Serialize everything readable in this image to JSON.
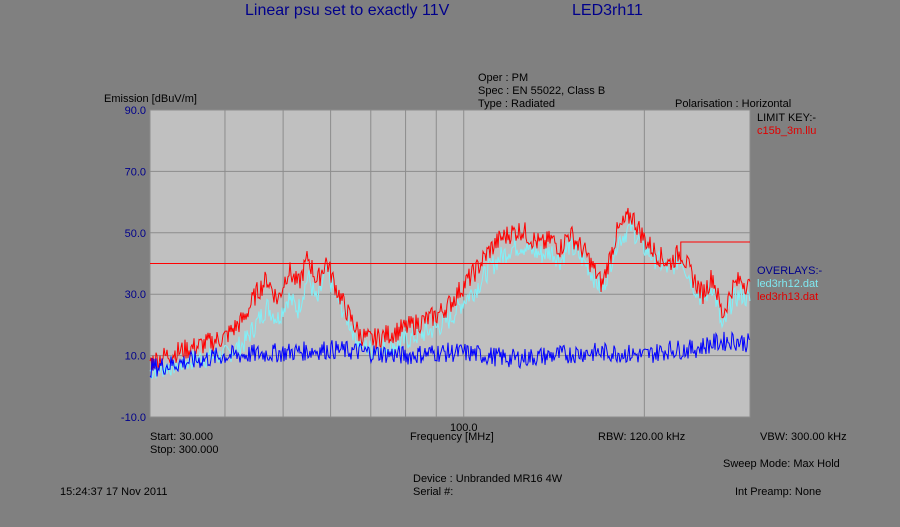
{
  "header": {
    "title": "Linear psu set to exactly 11V",
    "test_id": "LED3rh11",
    "oper": "Oper : PM",
    "spec": "Spec : EN 55022, Class B",
    "type": "Type : Radiated",
    "polarisation": "Polarisation : Horizontal"
  },
  "legend": {
    "limit_key_label": "LIMIT KEY:-",
    "limit_file": "c15b_3m.llu",
    "overlays_label": "OVERLAYS:-",
    "overlay_1": "led3rh12.dat",
    "overlay_2": "led3rh13.dat"
  },
  "footer": {
    "start": "Start: 30.000",
    "stop": "Stop: 300.000",
    "rbw": "RBW: 120.00 kHz",
    "vbw": "VBW: 300.00 kHz",
    "sweep_mode": "Sweep Mode: Max Hold",
    "int_preamp": "Int Preamp: None",
    "timestamp": "15:24:37 17 Nov 2011",
    "device": "Device : Unbranded   MR16 4W",
    "serial": "Serial #:"
  },
  "colors": {
    "plot_bg": "#c0c0c0",
    "grid": "#8c8c8c",
    "limit": "#ff0000",
    "overlay_1": "#80f0f8",
    "overlay_2": "#ff0000",
    "trace": "#0000ff"
  },
  "chart_data": {
    "type": "line",
    "ylabel": "Emission [dBuV/m]",
    "xlabel": "Frequency [MHz]",
    "xscale": "log",
    "xlim": [
      30,
      300
    ],
    "ylim": [
      -10,
      90
    ],
    "yticks": [
      {
        "value": 90,
        "label": "90.0"
      },
      {
        "value": 70,
        "label": "70.0"
      },
      {
        "value": 50,
        "label": "50.0"
      },
      {
        "value": 30,
        "label": "30.0"
      },
      {
        "value": 10,
        "label": "10.0"
      },
      {
        "value": -10,
        "label": "-10.0"
      }
    ],
    "xticks": [
      {
        "value": 100,
        "label": "100.0"
      }
    ],
    "grid": true,
    "series": [
      {
        "name": "c15b_3m.llu",
        "color": "#ff0000",
        "x": [
          30,
          230,
          230,
          300
        ],
        "y": [
          40,
          40,
          47,
          47
        ]
      },
      {
        "name": "led3rh12.dat",
        "color": "#80f0f8",
        "x": [
          30,
          33,
          36,
          40,
          43,
          45,
          47,
          49,
          51,
          53,
          55,
          57,
          59,
          61,
          64,
          67,
          70,
          75,
          80,
          85,
          90,
          95,
          100,
          105,
          110,
          115,
          120,
          125,
          130,
          135,
          140,
          145,
          150,
          160,
          170,
          180,
          190,
          200,
          210,
          220,
          230,
          240,
          250,
          260,
          270,
          280,
          290,
          300
        ],
        "y": [
          5,
          7,
          9,
          10,
          14,
          20,
          26,
          22,
          29,
          25,
          36,
          27,
          38,
          30,
          22,
          14,
          12,
          13,
          15,
          17,
          19,
          22,
          28,
          32,
          38,
          42,
          45,
          46,
          44,
          43,
          44,
          41,
          46,
          40,
          31,
          47,
          52,
          45,
          41,
          38,
          42,
          34,
          28,
          33,
          18,
          28,
          30,
          28
        ]
      },
      {
        "name": "led3rh13.dat",
        "color": "#ff0000",
        "x": [
          30,
          33,
          36,
          40,
          43,
          45,
          47,
          49,
          51,
          53,
          55,
          57,
          59,
          61,
          64,
          67,
          70,
          75,
          80,
          85,
          90,
          95,
          100,
          105,
          110,
          115,
          120,
          125,
          130,
          135,
          140,
          145,
          150,
          160,
          170,
          180,
          190,
          200,
          210,
          220,
          230,
          240,
          250,
          260,
          270,
          280,
          290,
          300
        ],
        "y": [
          8,
          11,
          13,
          16,
          22,
          30,
          35,
          28,
          38,
          33,
          42,
          34,
          41,
          33,
          24,
          17,
          15,
          17,
          19,
          21,
          23,
          27,
          33,
          38,
          44,
          48,
          50,
          51,
          48,
          46,
          48,
          45,
          50,
          43,
          33,
          50,
          56,
          48,
          43,
          40,
          44,
          36,
          30,
          36,
          23,
          32,
          35,
          32
        ]
      },
      {
        "name": "trace",
        "color": "#0000ff",
        "x": [
          30,
          40,
          50,
          60,
          70,
          80,
          90,
          100,
          120,
          140,
          160,
          180,
          200,
          220,
          240,
          260,
          280,
          300
        ],
        "y": [
          6,
          10,
          11,
          12,
          11,
          10,
          11,
          11,
          9,
          10,
          11,
          11,
          10,
          12,
          12,
          14,
          15,
          14
        ]
      }
    ]
  }
}
